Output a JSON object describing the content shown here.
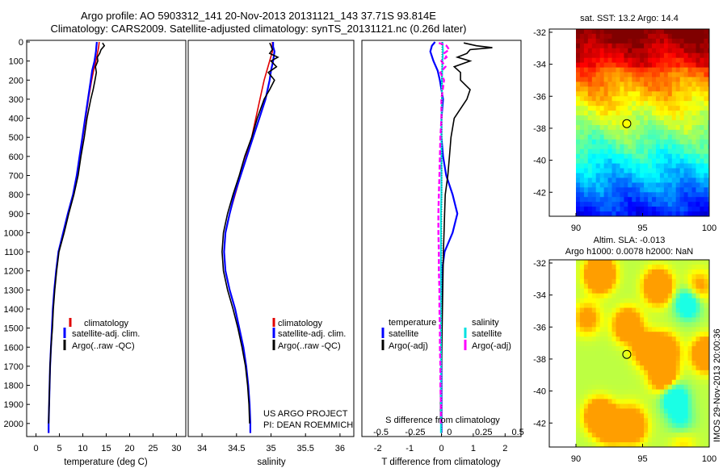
{
  "header": {
    "line1": "Argo profile: AO 5903312_141 20-Nov-2013 20131121_143 37.71S 93.814E",
    "line2": "Climatology: CARS2009. Satellite-adjusted climatology: synTS_20131121.nc (0.26d later)"
  },
  "colors": {
    "climatology": "#e00000",
    "satellite": "#0000ff",
    "argo": "#000000",
    "sal_sat": "#00e0e0",
    "sal_argo": "#ff00ff"
  },
  "chart_data": [
    {
      "type": "line",
      "title": "",
      "xlabel": "temperature (deg C)",
      "xlim": [
        -2,
        32
      ],
      "xticks": [
        0,
        5,
        10,
        15,
        20,
        25,
        30
      ],
      "ylim": [
        0,
        2060
      ],
      "yticks": [
        0,
        100,
        200,
        300,
        400,
        500,
        600,
        700,
        800,
        900,
        1000,
        1100,
        1200,
        1300,
        1400,
        1500,
        1600,
        1700,
        1800,
        1900,
        2000
      ],
      "legend": [
        "climatology",
        "satellite-adj. clim.",
        "Argo(..raw -QC)"
      ],
      "series": [
        {
          "name": "climatology",
          "depth": [
            0,
            25,
            50,
            100,
            150,
            200,
            300,
            400,
            500,
            600,
            700,
            800,
            900,
            1000,
            1100,
            1200,
            1300,
            1400,
            1500,
            1600,
            1700,
            1800,
            1900,
            2000,
            2050
          ],
          "values": [
            13.5,
            13.4,
            13.2,
            12.8,
            12.3,
            11.9,
            11.2,
            10.6,
            10.0,
            9.4,
            8.8,
            8.0,
            6.9,
            5.9,
            4.8,
            4.3,
            3.9,
            3.6,
            3.4,
            3.2,
            3.0,
            2.9,
            2.8,
            2.7,
            2.7
          ]
        },
        {
          "name": "satellite-adj. clim.",
          "depth": [
            0,
            25,
            50,
            100,
            150,
            200,
            300,
            400,
            500,
            600,
            700,
            800,
            900,
            1000,
            1100,
            1200,
            1300,
            1400,
            1500,
            1600,
            1700,
            1800,
            1900,
            2000,
            2050
          ],
          "values": [
            13.0,
            12.9,
            12.8,
            12.5,
            12.0,
            11.7,
            11.1,
            10.5,
            9.9,
            9.3,
            8.7,
            7.9,
            6.8,
            5.8,
            4.8,
            4.3,
            3.9,
            3.6,
            3.4,
            3.2,
            3.0,
            2.9,
            2.8,
            2.7,
            2.7
          ]
        },
        {
          "name": "Argo(..raw -QC)",
          "depth": [
            5,
            20,
            40,
            60,
            80,
            100,
            130,
            160,
            200,
            250,
            300,
            400,
            500,
            600,
            700,
            800,
            900,
            1000,
            1100,
            1200,
            1300,
            1400,
            1500,
            1600,
            1700,
            1800,
            1900,
            2000
          ],
          "values": [
            14.2,
            14.6,
            13.9,
            13.6,
            13.1,
            13.2,
            12.7,
            12.9,
            12.6,
            12.2,
            11.7,
            10.9,
            10.3,
            9.6,
            9.0,
            8.1,
            7.0,
            6.0,
            4.9,
            4.4,
            4.0,
            3.7,
            3.5,
            3.2,
            3.0,
            2.9,
            2.8,
            2.7
          ]
        }
      ]
    },
    {
      "type": "line",
      "title": "",
      "xlabel": "salinity",
      "xlim": [
        33.8,
        36.2
      ],
      "xticks": [
        34,
        34.5,
        35,
        35.5,
        36
      ],
      "xtick_labels": [
        "34",
        "34.5",
        "35",
        "35.5",
        "36"
      ],
      "ylim": [
        0,
        2060
      ],
      "legend": [
        "climatology",
        "satellite-adj. clim.",
        "Argo(..raw -QC)"
      ],
      "annotation": [
        "US ARGO PROJECT",
        "PI: DEAN ROEMMICH"
      ],
      "series": [
        {
          "name": "climatology",
          "depth": [
            0,
            25,
            50,
            100,
            150,
            200,
            300,
            400,
            500,
            600,
            700,
            800,
            900,
            1000,
            1100,
            1200,
            1300,
            1400,
            1500,
            1600,
            1700,
            1800,
            1900,
            2000,
            2050
          ],
          "values": [
            35.02,
            35.02,
            35.02,
            34.98,
            34.94,
            34.9,
            34.84,
            34.78,
            34.72,
            34.64,
            34.56,
            34.48,
            34.4,
            34.34,
            34.32,
            34.34,
            34.4,
            34.48,
            34.54,
            34.6,
            34.64,
            34.67,
            34.69,
            34.7,
            34.7
          ]
        },
        {
          "name": "satellite-adj. clim.",
          "depth": [
            0,
            25,
            50,
            100,
            150,
            200,
            300,
            400,
            500,
            600,
            700,
            800,
            900,
            1000,
            1100,
            1200,
            1300,
            1400,
            1500,
            1600,
            1700,
            1800,
            1900,
            2000,
            2050
          ],
          "values": [
            35.03,
            35.03,
            35.05,
            35.03,
            35.0,
            34.98,
            34.92,
            34.83,
            34.74,
            34.65,
            34.56,
            34.47,
            34.4,
            34.34,
            34.32,
            34.34,
            34.4,
            34.48,
            34.54,
            34.6,
            34.64,
            34.67,
            34.69,
            34.7,
            34.7
          ]
        },
        {
          "name": "Argo(..raw -QC)",
          "depth": [
            5,
            20,
            40,
            60,
            80,
            100,
            130,
            160,
            200,
            250,
            300,
            400,
            500,
            600,
            700,
            800,
            900,
            1000,
            1100,
            1200,
            1300,
            1400,
            1500,
            1600,
            1700,
            1800,
            1900,
            2000
          ],
          "values": [
            34.98,
            35.0,
            35.02,
            34.98,
            35.1,
            35.0,
            35.08,
            34.96,
            35.05,
            34.98,
            34.9,
            34.8,
            34.72,
            34.62,
            34.54,
            34.45,
            34.37,
            34.31,
            34.29,
            34.31,
            34.37,
            34.45,
            34.52,
            34.58,
            34.63,
            34.66,
            34.68,
            34.69
          ]
        }
      ]
    },
    {
      "type": "line",
      "xlabel": "T difference from climatology",
      "xlim": [
        -2.5,
        2.5
      ],
      "xticks": [
        -2,
        -1,
        0,
        1,
        2
      ],
      "top_axis_label": "S difference from climatology",
      "top_ticks": [
        "-0.5",
        "-0.25",
        "0",
        "0.25",
        "0.5"
      ],
      "ylim": [
        0,
        2060
      ],
      "legend_headers": [
        "temperature",
        "salinity"
      ],
      "legend": [
        "satellite",
        "Argo(-adj)",
        "satellite",
        "Argo(-adj)"
      ],
      "series": [
        {
          "name": "temperature satellite",
          "depth": [
            0,
            20,
            50,
            100,
            150,
            200,
            300,
            400,
            500,
            600,
            700,
            800,
            900,
            1000,
            1100,
            1200,
            1300,
            1400,
            1500,
            1600,
            1700,
            1800,
            1900,
            2000,
            2050
          ],
          "values": [
            -0.2,
            -0.3,
            -0.35,
            -0.25,
            -0.12,
            -0.05,
            0.05,
            0.0,
            0.0,
            0.05,
            0.15,
            0.35,
            0.5,
            0.35,
            0.1,
            0.02,
            0.0,
            0.0,
            0.0,
            0.0,
            0.0,
            0.0,
            0.0,
            0.0,
            0.0
          ]
        },
        {
          "name": "temperature Argo(-adj)",
          "depth": [
            5,
            20,
            30,
            40,
            60,
            80,
            100,
            130,
            160,
            200,
            250,
            300,
            400,
            500,
            600,
            700,
            800,
            900,
            1000,
            1100,
            1200,
            1300,
            1400,
            1500,
            1600,
            1700,
            1800,
            1900,
            2000
          ],
          "values": [
            0.7,
            1.1,
            1.6,
            0.9,
            0.8,
            0.5,
            0.9,
            0.4,
            0.6,
            0.6,
            0.9,
            0.8,
            0.4,
            0.3,
            0.25,
            0.2,
            0.12,
            0.1,
            0.08,
            0.06,
            0.05,
            0.04,
            0.03,
            0.02,
            0.01,
            0.0,
            -0.02,
            -0.03,
            -0.03
          ]
        },
        {
          "name": "salinity satellite",
          "depth": [
            0,
            50,
            100,
            200,
            300,
            400,
            500,
            600,
            700,
            800,
            900,
            1000,
            1200,
            1400,
            1600,
            1800,
            2000,
            2050
          ],
          "values": [
            0.02,
            0.03,
            0.02,
            0.01,
            0.01,
            0.0,
            0.0,
            0.0,
            0.0,
            0.0,
            -0.01,
            -0.01,
            -0.01,
            -0.01,
            -0.01,
            -0.01,
            -0.01,
            -0.01
          ]
        },
        {
          "name": "salinity Argo(-adj)",
          "depth": [
            5,
            20,
            40,
            60,
            80,
            100,
            130,
            160,
            200,
            300,
            400,
            500,
            600,
            700,
            800,
            900,
            1000,
            1100,
            1200,
            1300,
            1400,
            1500,
            1600,
            1700,
            1800,
            1900,
            2000
          ],
          "values": [
            -0.05,
            0.1,
            0.15,
            0.05,
            0.1,
            0.0,
            0.08,
            -0.02,
            0.05,
            0.0,
            0.0,
            -0.02,
            -0.03,
            -0.04,
            -0.05,
            -0.06,
            -0.06,
            -0.05,
            -0.05,
            -0.04,
            -0.04,
            -0.03,
            -0.03,
            -0.02,
            -0.02,
            -0.01,
            -0.01
          ]
        }
      ]
    },
    {
      "type": "heatmap",
      "title": "sat. SST: 13.2 Argo: 14.4",
      "xlim": [
        88,
        100
      ],
      "ylim": [
        -43.5,
        -31.8
      ],
      "xticks": [
        90,
        95,
        100
      ],
      "yticks": [
        -42,
        -40,
        -38,
        -36,
        -34,
        -32
      ],
      "marker": {
        "lon": 93.814,
        "lat": -37.71
      }
    },
    {
      "type": "heatmap",
      "title_lines": [
        "Altim. SLA: -0.013",
        "Argo h1000: 0.0078 h2000: NaN"
      ],
      "xlim": [
        88,
        100
      ],
      "ylim": [
        -43.5,
        -31.8
      ],
      "xticks": [
        90,
        95,
        100
      ],
      "yticks": [
        -42,
        -40,
        -38,
        -36,
        -34,
        -32
      ],
      "side_label": "IMOS 29-Nov-2013 20:00:36",
      "marker": {
        "lon": 93.814,
        "lat": -37.71
      }
    }
  ]
}
